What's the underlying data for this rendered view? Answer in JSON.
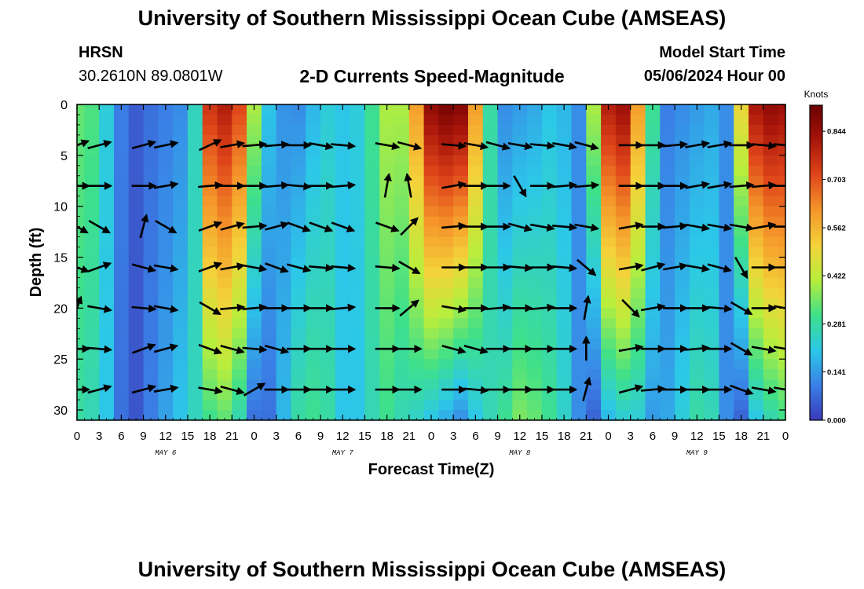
{
  "header": {
    "title": "University of Southern Mississippi Ocean Cube (AMSEAS)",
    "station": "HRSN",
    "coords": "30.2610N  89.0801W",
    "subtitle": "2-D Currents Speed-Magnitude",
    "model_start_label": "Model Start Time",
    "model_start_value": "05/06/2024 Hour 00"
  },
  "footer": {
    "title": "University of Southern Mississippi Ocean Cube (AMSEAS)"
  },
  "chart_data": {
    "type": "heatmap",
    "title": "2-D Currents Speed-Magnitude",
    "xlabel": "Forecast Time(Z)",
    "ylabel": "Depth (ft)",
    "x_range_hours": [
      0,
      96
    ],
    "y_range_ft": [
      0,
      31
    ],
    "x_tick_hours": [
      0,
      3,
      6,
      9,
      12,
      15,
      18,
      21,
      24,
      27,
      30,
      33,
      36,
      39,
      42,
      45,
      48,
      51,
      54,
      57,
      60,
      63,
      66,
      69,
      72,
      75,
      78,
      81,
      84,
      87,
      90,
      93,
      96
    ],
    "x_tick_labels": [
      "0",
      "3",
      "6",
      "9",
      "12",
      "15",
      "18",
      "21",
      "0",
      "3",
      "6",
      "9",
      "12",
      "15",
      "18",
      "21",
      "0",
      "3",
      "6",
      "9",
      "12",
      "15",
      "18",
      "21",
      "0",
      "3",
      "6",
      "9",
      "12",
      "15",
      "18",
      "21",
      "0"
    ],
    "day_labels": [
      {
        "label": "MAY 6",
        "hour": 12
      },
      {
        "label": "MAY 7",
        "hour": 36
      },
      {
        "label": "MAY 8",
        "hour": 60
      },
      {
        "label": "MAY 9",
        "hour": 84
      }
    ],
    "y_ticks": [
      0,
      5,
      10,
      15,
      20,
      25,
      30
    ],
    "colorbar": {
      "title": "Knots",
      "min": 0.0,
      "max": 0.92,
      "ticks": [
        0.0,
        0.141,
        0.281,
        0.422,
        0.562,
        0.703,
        0.844
      ],
      "tick_labels": [
        "0.000",
        "0.141",
        "0.281",
        "0.422",
        "0.562",
        "0.703",
        "0.844"
      ],
      "colors": [
        "#3b3bb8",
        "#3a80e6",
        "#2cc8e8",
        "#3ee08a",
        "#b8ee3c",
        "#f4d23a",
        "#f5962a",
        "#e0461a",
        "#a8150a",
        "#6a0000"
      ]
    },
    "speed_profile_columns": [
      {
        "hour": 0,
        "surface": 0.34,
        "bottom": 0.28
      },
      {
        "hour": 2,
        "surface": 0.32,
        "bottom": 0.26
      },
      {
        "hour": 4,
        "surface": 0.22,
        "bottom": 0.2
      },
      {
        "hour": 6,
        "surface": 0.1,
        "bottom": 0.08
      },
      {
        "hour": 8,
        "surface": 0.05,
        "bottom": 0.04
      },
      {
        "hour": 10,
        "surface": 0.08,
        "bottom": 0.1
      },
      {
        "hour": 12,
        "surface": 0.1,
        "bottom": 0.15
      },
      {
        "hour": 14,
        "surface": 0.12,
        "bottom": 0.2
      },
      {
        "hour": 16,
        "surface": 0.25,
        "bottom": 0.25
      },
      {
        "hour": 18,
        "surface": 0.75,
        "bottom": 0.3
      },
      {
        "hour": 20,
        "surface": 0.8,
        "bottom": 0.33
      },
      {
        "hour": 22,
        "surface": 0.72,
        "bottom": 0.26
      },
      {
        "hour": 24,
        "surface": 0.4,
        "bottom": 0.08
      },
      {
        "hour": 26,
        "surface": 0.2,
        "bottom": 0.08
      },
      {
        "hour": 28,
        "surface": 0.13,
        "bottom": 0.18
      },
      {
        "hour": 30,
        "surface": 0.12,
        "bottom": 0.28
      },
      {
        "hour": 32,
        "surface": 0.18,
        "bottom": 0.3
      },
      {
        "hour": 34,
        "surface": 0.22,
        "bottom": 0.28
      },
      {
        "hour": 36,
        "surface": 0.2,
        "bottom": 0.2
      },
      {
        "hour": 38,
        "surface": 0.22,
        "bottom": 0.2
      },
      {
        "hour": 40,
        "surface": 0.3,
        "bottom": 0.26
      },
      {
        "hour": 42,
        "surface": 0.4,
        "bottom": 0.3
      },
      {
        "hour": 44,
        "surface": 0.4,
        "bottom": 0.26
      },
      {
        "hour": 46,
        "surface": 0.6,
        "bottom": 0.24
      },
      {
        "hour": 48,
        "surface": 0.86,
        "bottom": 0.2
      },
      {
        "hour": 50,
        "surface": 0.9,
        "bottom": 0.16
      },
      {
        "hour": 52,
        "surface": 0.88,
        "bottom": 0.12
      },
      {
        "hour": 54,
        "surface": 0.6,
        "bottom": 0.2
      },
      {
        "hour": 56,
        "surface": 0.28,
        "bottom": 0.26
      },
      {
        "hour": 58,
        "surface": 0.12,
        "bottom": 0.3
      },
      {
        "hour": 60,
        "surface": 0.14,
        "bottom": 0.36
      },
      {
        "hour": 62,
        "surface": 0.16,
        "bottom": 0.34
      },
      {
        "hour": 64,
        "surface": 0.2,
        "bottom": 0.3
      },
      {
        "hour": 66,
        "surface": 0.18,
        "bottom": 0.24
      },
      {
        "hour": 68,
        "surface": 0.12,
        "bottom": 0.12
      },
      {
        "hour": 70,
        "surface": 0.4,
        "bottom": 0.06
      },
      {
        "hour": 72,
        "surface": 0.8,
        "bottom": 0.18
      },
      {
        "hour": 74,
        "surface": 0.84,
        "bottom": 0.22
      },
      {
        "hour": 76,
        "surface": 0.6,
        "bottom": 0.22
      },
      {
        "hour": 78,
        "surface": 0.3,
        "bottom": 0.14
      },
      {
        "hour": 80,
        "surface": 0.1,
        "bottom": 0.16
      },
      {
        "hour": 82,
        "surface": 0.12,
        "bottom": 0.22
      },
      {
        "hour": 84,
        "surface": 0.14,
        "bottom": 0.28
      },
      {
        "hour": 86,
        "surface": 0.16,
        "bottom": 0.26
      },
      {
        "hour": 88,
        "surface": 0.12,
        "bottom": 0.12
      },
      {
        "hour": 90,
        "surface": 0.5,
        "bottom": 0.06
      },
      {
        "hour": 92,
        "surface": 0.82,
        "bottom": 0.2
      },
      {
        "hour": 94,
        "surface": 0.86,
        "bottom": 0.26
      },
      {
        "hour": 96,
        "surface": 0.84,
        "bottom": 0.3
      }
    ],
    "vector_depths_ft": [
      4,
      8,
      12,
      16,
      20,
      24,
      28
    ],
    "vector_hours": [
      0,
      3,
      9,
      12,
      18,
      21,
      24,
      27,
      30,
      33,
      36,
      42,
      45,
      51,
      54,
      57,
      60,
      63,
      66,
      69,
      75,
      78,
      81,
      84,
      87,
      90,
      93,
      96
    ],
    "vector_directions_deg": [
      [
        20,
        15,
        15,
        12,
        25,
        10,
        5,
        5,
        0,
        -10,
        -5,
        -10,
        -15,
        -5,
        -10,
        -15,
        -10,
        -5,
        -10,
        -15,
        0,
        0,
        5,
        10,
        10,
        0,
        -5,
        -5
      ],
      [
        0,
        0,
        0,
        10,
        5,
        0,
        0,
        5,
        -5,
        0,
        5,
        80,
        100,
        10,
        0,
        0,
        -60,
        0,
        5,
        5,
        0,
        0,
        0,
        10,
        10,
        5,
        5,
        0
      ],
      [
        -30,
        -30,
        75,
        -30,
        20,
        15,
        5,
        15,
        -20,
        -20,
        -20,
        -20,
        45,
        5,
        0,
        0,
        -15,
        -10,
        -5,
        -10,
        10,
        0,
        5,
        -10,
        -10,
        -10,
        10,
        0
      ],
      [
        -20,
        20,
        -15,
        -10,
        20,
        10,
        -10,
        -20,
        -15,
        -5,
        -5,
        -5,
        -30,
        0,
        0,
        0,
        -5,
        0,
        -5,
        -40,
        10,
        15,
        10,
        -10,
        -15,
        -60,
        0,
        0
      ],
      [
        70,
        -10,
        -5,
        -10,
        -30,
        5,
        5,
        0,
        0,
        0,
        5,
        0,
        40,
        -10,
        0,
        5,
        0,
        5,
        0,
        80,
        -45,
        10,
        0,
        0,
        -5,
        -30,
        0,
        -10
      ],
      [
        0,
        -5,
        20,
        15,
        -20,
        -15,
        -5,
        -15,
        0,
        0,
        0,
        0,
        0,
        -15,
        -15,
        0,
        0,
        0,
        0,
        90,
        10,
        0,
        0,
        5,
        0,
        -30,
        -10,
        -10
      ],
      [
        0,
        15,
        15,
        10,
        -10,
        -15,
        30,
        0,
        0,
        0,
        0,
        0,
        0,
        0,
        -5,
        0,
        0,
        0,
        0,
        75,
        15,
        5,
        0,
        0,
        0,
        -20,
        -10,
        -10
      ]
    ]
  }
}
